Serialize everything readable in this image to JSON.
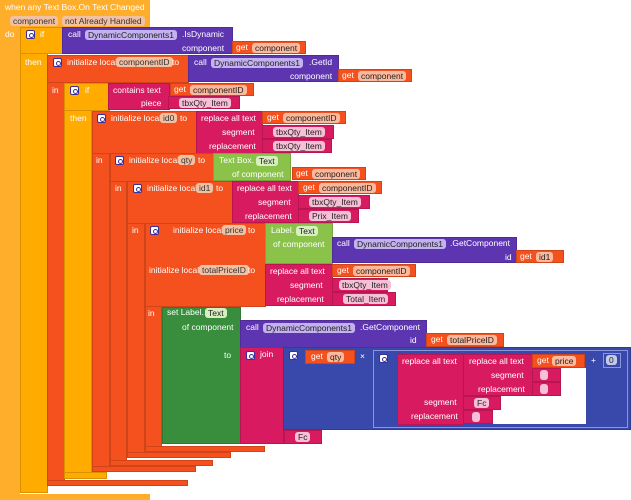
{
  "event": {
    "title": "when any Text Box.On Text Changed",
    "param1": "component",
    "param2": "not Already Handled",
    "do": "do"
  },
  "labels": {
    "if": "if",
    "then": "then",
    "in": "in",
    "call": "call",
    "to": "to",
    "get": "get",
    "component": "component",
    "of_component": "of component",
    "initialize_local": "initialize local",
    "segment": "segment",
    "replacement": "replacement",
    "piece": "piece",
    "contains_text": "contains text",
    "replace_all_text": "replace all text",
    "id": "id",
    "join": "join",
    "times": "×",
    "plus": "+",
    "set_label": "set Label."
  },
  "comp": "DynamicComponents1",
  "methods": {
    "is_dynamic": ".IsDynamic",
    "get_id": ".GetId",
    "get_component": ".GetComponent"
  },
  "vars": {
    "componentID": "componentID",
    "id0": "id0",
    "qty": "qty",
    "id1": "id1",
    "price": "price",
    "totalPriceID": "totalPriceID"
  },
  "getters": {
    "textbox": "Text Box.",
    "label": "Label.",
    "prop": "Text"
  },
  "strings": {
    "tbx": "tbxQty_Item",
    "prix": "Prix_Item",
    "total": "Total_Item",
    "fc": "Fc",
    "empty": ""
  },
  "number": "0",
  "colors": {
    "event": "#FFAE2B",
    "control": "#FFAB00",
    "variables": "#F4511E",
    "components": "#5E35B1",
    "text": "#D81B60",
    "getter": "#8BC34A",
    "setter": "#388E3C",
    "math": "#3949AB"
  }
}
